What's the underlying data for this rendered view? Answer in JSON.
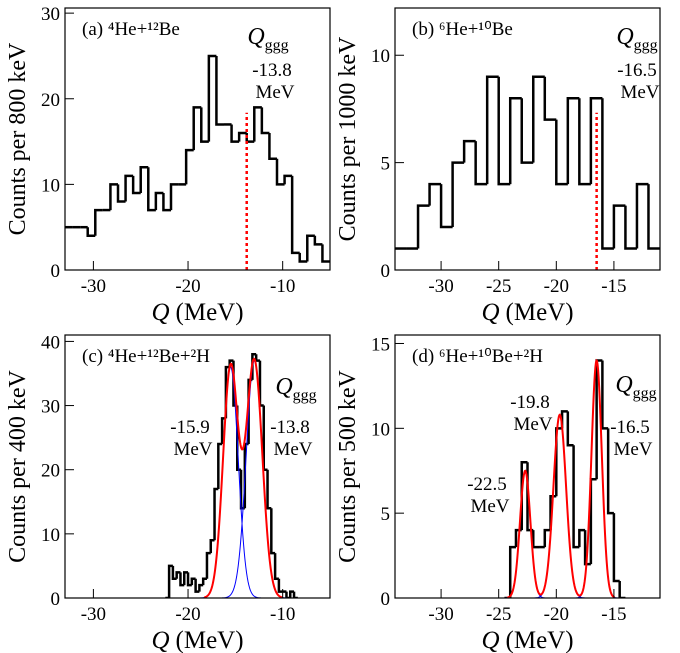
{
  "chart_data": [
    {
      "type": "histogram",
      "panel_label": "(a) ⁴He+¹²Be",
      "ylabel": "Counts per 800 keV",
      "xlabel_symbol": "Q",
      "xlabel_unit": "(MeV)",
      "xlim": [
        -33,
        -5
      ],
      "xticks": [
        -30,
        -20,
        -10
      ],
      "ylim": [
        0,
        30.6
      ],
      "yticks": [
        0,
        10,
        20,
        30
      ],
      "color": "#000000",
      "bins": [
        -33,
        -32.2,
        -31.4,
        -30.6,
        -29.8,
        -29,
        -28.2,
        -27.4,
        -26.6,
        -25.8,
        -25,
        -24.2,
        -23.4,
        -22.6,
        -21.8,
        -21,
        -20.2,
        -19.4,
        -18.6,
        -17.8,
        -17,
        -16.2,
        -15.4,
        -14.6,
        -13.8,
        -13,
        -12.2,
        -11.4,
        -10.6,
        -9.8,
        -9,
        -8.2,
        -7.4,
        -6.6,
        -5.8,
        -5
      ],
      "counts": [
        5,
        5,
        5,
        4,
        7,
        7,
        10,
        8,
        11,
        9,
        12,
        7,
        9,
        7,
        10,
        10,
        14,
        19,
        15,
        25,
        17,
        17,
        15,
        16,
        15,
        19,
        16,
        13,
        10,
        11,
        2,
        1,
        4,
        3,
        1
      ],
      "q_symbol": "Q",
      "q_subscript": "ggg",
      "dashed_line": true,
      "line_color": "#ff0000",
      "annotations": [
        {
          "value": -13.8,
          "label": "-13.8",
          "unit": "MeV"
        }
      ]
    },
    {
      "type": "histogram",
      "panel_label": "(b) ⁶He+¹⁰Be",
      "ylabel": "Counts per 1000 keV",
      "xlabel_symbol": "Q",
      "xlabel_unit": "(MeV)",
      "xlim": [
        -34,
        -11
      ],
      "xticks": [
        -30,
        -25,
        -20,
        -15
      ],
      "ylim": [
        0,
        12.2
      ],
      "yticks": [
        0,
        5,
        10
      ],
      "color": "#000000",
      "bins": [
        -34,
        -33,
        -32,
        -31,
        -30,
        -29,
        -28,
        -27,
        -26,
        -25,
        -24,
        -23,
        -22,
        -21,
        -20,
        -19,
        -18,
        -17,
        -16,
        -15,
        -14,
        -13,
        -12,
        -11
      ],
      "counts": [
        1,
        1,
        3,
        4,
        2,
        5,
        6,
        4,
        9,
        4,
        8,
        5,
        9,
        7,
        4,
        8,
        4,
        8,
        1,
        3,
        1,
        4,
        1
      ],
      "q_symbol": "Q",
      "q_subscript": "ggg",
      "dashed_line": true,
      "line_color": "#ff0000",
      "annotations": [
        {
          "value": -16.5,
          "label": "-16.5",
          "unit": "MeV"
        }
      ]
    },
    {
      "type": "histogram",
      "panel_label": "(c) ⁴He+¹²Be+²H",
      "ylabel": "Counts per 400 keV",
      "xlabel_symbol": "Q",
      "xlabel_unit": "(MeV)",
      "xlim": [
        -33,
        -5
      ],
      "xticks": [
        -30,
        -20,
        -10
      ],
      "ylim": [
        0,
        41
      ],
      "yticks": [
        0,
        10,
        20,
        30,
        40
      ],
      "color": "#000000",
      "bins": [
        -22.4,
        -22,
        -21.6,
        -21.2,
        -20.8,
        -20.4,
        -20,
        -19.6,
        -19.2,
        -18.8,
        -18.4,
        -18,
        -17.6,
        -17.2,
        -16.8,
        -16.4,
        -16,
        -15.6,
        -15.2,
        -14.8,
        -14.4,
        -14,
        -13.6,
        -13.2,
        -12.8,
        -12.4,
        -12,
        -11.6,
        -11.2,
        -10.8,
        -10.4,
        -10,
        -9.6,
        -9.2,
        -8.8,
        -8.4
      ],
      "counts": [
        0,
        5,
        3,
        4,
        2,
        4,
        2,
        3,
        1,
        2,
        3,
        7,
        9,
        17,
        24,
        28,
        36,
        37,
        30,
        20,
        14,
        24,
        34,
        38,
        37,
        30,
        20,
        14,
        7,
        3,
        1,
        1,
        0,
        1,
        0
      ],
      "fit_color": "#ff0000",
      "component_color": "#0000ff",
      "components": [
        {
          "amplitude": 36,
          "mean": -15.5,
          "sigma": 0.8
        },
        {
          "amplitude": 37,
          "mean": -13.0,
          "sigma": 0.85
        }
      ],
      "q_symbol": "Q",
      "q_subscript": "ggg",
      "annotations": [
        {
          "value": -15.9,
          "label": "-15.9",
          "unit": "MeV"
        },
        {
          "value": -13.8,
          "label": "-13.8",
          "unit": "MeV"
        }
      ]
    },
    {
      "type": "histogram",
      "panel_label": "(d) ⁶He+¹⁰Be+²H",
      "ylabel": "Counts per 500 keV",
      "xlabel_symbol": "Q",
      "xlabel_unit": "(MeV)",
      "xlim": [
        -34,
        -11
      ],
      "xticks": [
        -30,
        -25,
        -20,
        -15
      ],
      "ylim": [
        0,
        15.5
      ],
      "yticks": [
        0,
        5,
        10,
        15
      ],
      "color": "#000000",
      "bins": [
        -24.5,
        -24,
        -23.5,
        -23,
        -22.5,
        -22,
        -21.5,
        -21,
        -20.5,
        -20,
        -19.5,
        -19,
        -18.5,
        -18,
        -17.5,
        -17,
        -16.5,
        -16,
        -15.5,
        -15,
        -14.5,
        -14
      ],
      "counts": [
        0,
        3,
        4,
        8,
        4,
        3,
        3,
        4,
        6,
        10,
        11,
        9,
        3,
        4,
        2,
        7,
        14,
        10,
        5,
        1,
        0
      ],
      "fit_color": "#ff0000",
      "component_color": "#0000ff",
      "components": [
        {
          "amplitude": 7.5,
          "mean": -22.7,
          "sigma": 0.45
        },
        {
          "amplitude": 10.8,
          "mean": -19.7,
          "sigma": 0.55
        },
        {
          "amplitude": 14,
          "mean": -16.5,
          "sigma": 0.45
        }
      ],
      "q_symbol": "Q",
      "q_subscript": "ggg",
      "annotations": [
        {
          "value": -22.5,
          "label": "-22.5",
          "unit": "MeV"
        },
        {
          "value": -19.8,
          "label": "-19.8",
          "unit": "MeV"
        },
        {
          "value": -16.5,
          "label": "-16.5",
          "unit": "MeV"
        }
      ]
    }
  ]
}
